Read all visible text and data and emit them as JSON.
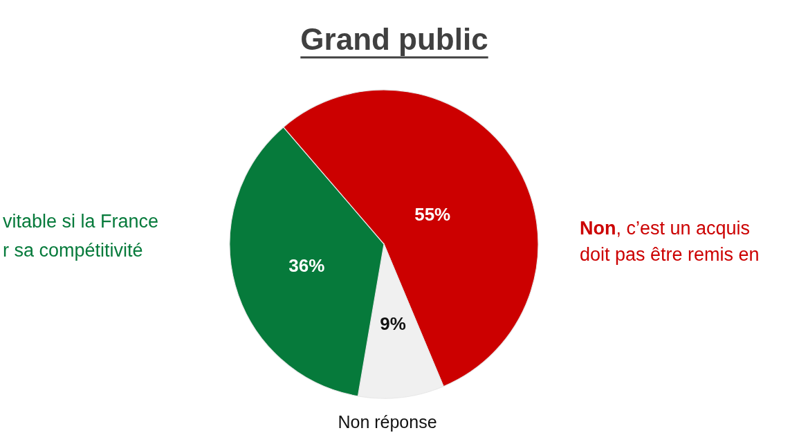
{
  "chart_data": {
    "type": "pie",
    "title": "Grand public",
    "categories": [
      "Non, c’est un acquis\ndoit pas être remis en",
      "Non réponse",
      "vitable si la France\nr sa compétitivité"
    ],
    "values": [
      55,
      9,
      36
    ],
    "colors": [
      "#cc0000",
      "#f0f0f0",
      "#067a3b"
    ],
    "value_labels": [
      "55%",
      "9%",
      "36%"
    ]
  }
}
